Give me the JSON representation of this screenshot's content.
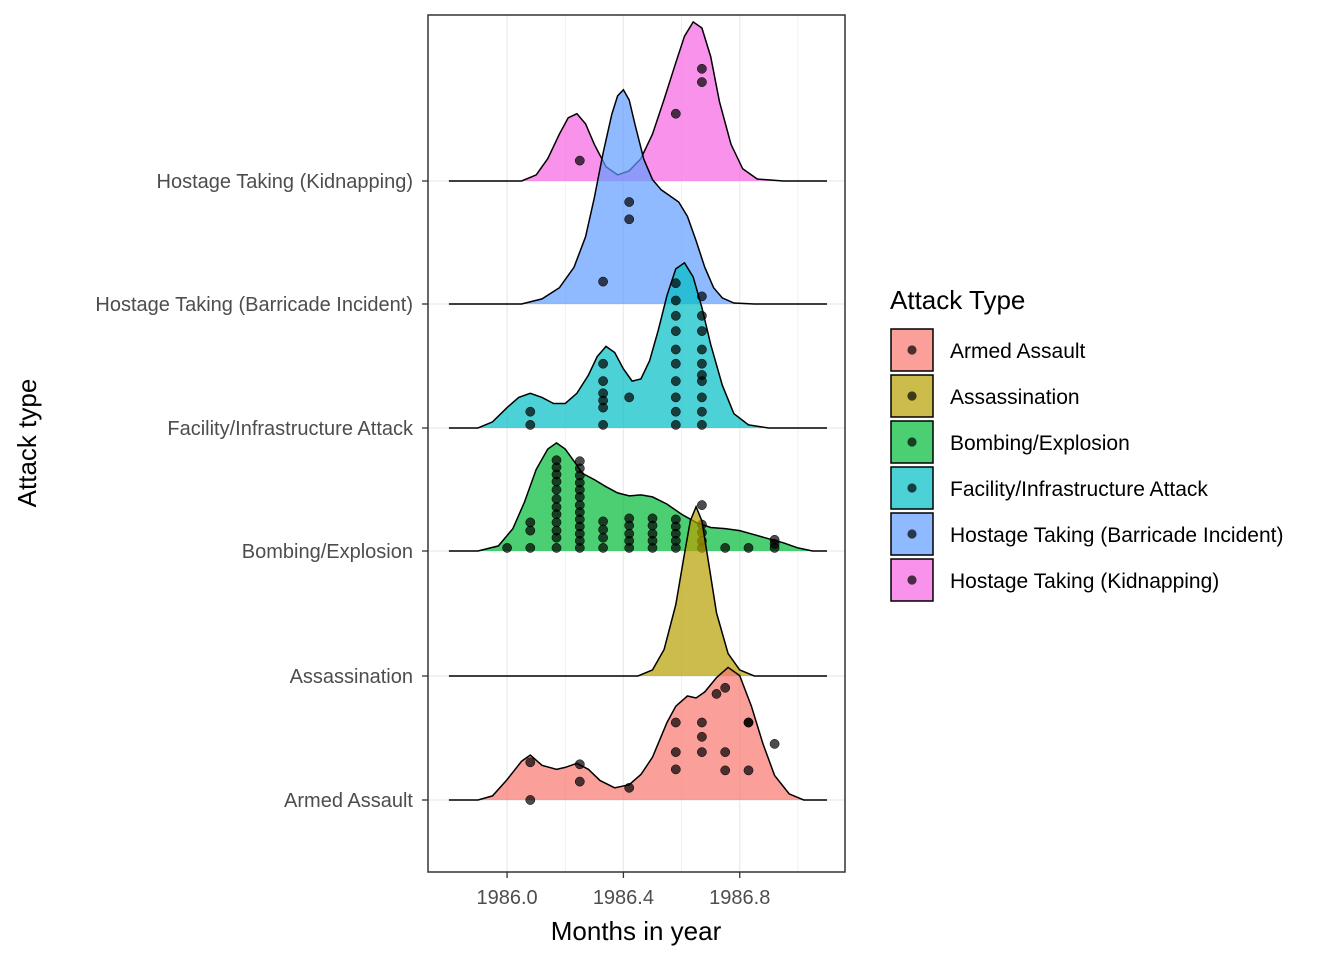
{
  "chart_data": {
    "type": "ridgeline",
    "xlabel": "Months in year",
    "ylabel": "Attack type",
    "xlim": [
      1985.79,
      1987.1
    ],
    "x_ticks": [
      1986.0,
      1986.2,
      1986.4,
      1986.6,
      1986.8,
      1987.0
    ],
    "x_tick_labels": [
      "1986.0",
      "",
      "1986.4",
      "",
      "1986.8",
      ""
    ],
    "grid": true,
    "legend_title": "Attack Type",
    "legend_position": "right",
    "categories": [
      "Armed Assault",
      "Assassination",
      "Bombing/Explosion",
      "Facility/Infrastructure Attack",
      "Hostage Taking (Barricade Incident)",
      "Hostage Taking (Kidnapping)"
    ],
    "colors": {
      "Armed Assault": "#F8766D",
      "Assassination": "#B79F00",
      "Bombing/Explosion": "#00BA38",
      "Facility/Infrastructure Attack": "#00BFC4",
      "Hostage Taking (Barricade Incident)": "#619CFF",
      "Hostage Taking (Kidnapping)": "#F564E3"
    },
    "series": [
      {
        "name": "Armed Assault",
        "density_x": [
          1985.8,
          1985.9,
          1985.95,
          1986.0,
          1986.05,
          1986.08,
          1986.12,
          1986.17,
          1986.2,
          1986.24,
          1986.28,
          1986.32,
          1986.37,
          1986.42,
          1986.46,
          1986.5,
          1986.55,
          1986.58,
          1986.62,
          1986.65,
          1986.68,
          1986.72,
          1986.76,
          1986.8,
          1986.84,
          1986.88,
          1986.92,
          1986.97,
          1987.02,
          1987.1
        ],
        "density_y": [
          0.0,
          0.0,
          0.04,
          0.2,
          0.38,
          0.44,
          0.34,
          0.3,
          0.32,
          0.36,
          0.3,
          0.19,
          0.12,
          0.15,
          0.25,
          0.42,
          0.76,
          0.92,
          1.02,
          1.0,
          1.06,
          1.2,
          1.3,
          1.22,
          0.92,
          0.55,
          0.24,
          0.06,
          0.0,
          0.0
        ],
        "points": [
          [
            1986.08,
            0.0
          ],
          [
            1986.08,
            0.37
          ],
          [
            1986.25,
            0.18
          ],
          [
            1986.25,
            0.35
          ],
          [
            1986.42,
            0.12
          ],
          [
            1986.58,
            0.3
          ],
          [
            1986.58,
            0.47
          ],
          [
            1986.58,
            0.76
          ],
          [
            1986.67,
            0.47
          ],
          [
            1986.67,
            0.62
          ],
          [
            1986.67,
            0.76
          ],
          [
            1986.72,
            1.04
          ],
          [
            1986.75,
            0.29
          ],
          [
            1986.75,
            0.47
          ],
          [
            1986.75,
            1.1
          ],
          [
            1986.83,
            0.29
          ],
          [
            1986.83,
            0.76
          ],
          [
            1986.83,
            0.76
          ],
          [
            1986.92,
            0.55
          ]
        ]
      },
      {
        "name": "Assassination",
        "density_x": [
          1985.8,
          1986.45,
          1986.5,
          1986.54,
          1986.58,
          1986.61,
          1986.63,
          1986.65,
          1986.67,
          1986.69,
          1986.72,
          1986.76,
          1986.8,
          1986.85,
          1987.1
        ],
        "density_y": [
          0.0,
          0.0,
          0.06,
          0.26,
          0.7,
          1.2,
          1.52,
          1.66,
          1.52,
          1.16,
          0.62,
          0.22,
          0.06,
          0.0,
          0.0
        ],
        "points": []
      },
      {
        "name": "Bombing/Explosion",
        "density_x": [
          1985.8,
          1985.9,
          1985.97,
          1986.02,
          1986.06,
          1986.1,
          1986.14,
          1986.17,
          1986.2,
          1986.23,
          1986.26,
          1986.3,
          1986.34,
          1986.38,
          1986.42,
          1986.46,
          1986.5,
          1986.55,
          1986.6,
          1986.65,
          1986.7,
          1986.75,
          1986.8,
          1986.85,
          1986.9,
          1986.95,
          1987.0,
          1987.05,
          1987.1
        ],
        "density_y": [
          0.0,
          0.0,
          0.05,
          0.22,
          0.48,
          0.8,
          1.0,
          1.06,
          1.0,
          0.88,
          0.76,
          0.7,
          0.63,
          0.57,
          0.54,
          0.55,
          0.53,
          0.46,
          0.36,
          0.28,
          0.23,
          0.22,
          0.2,
          0.16,
          0.12,
          0.08,
          0.03,
          0.0,
          0.0
        ],
        "points": [
          [
            1986.0,
            0.03
          ],
          [
            1986.08,
            0.03
          ],
          [
            1986.08,
            0.2
          ],
          [
            1986.08,
            0.28
          ],
          [
            1986.17,
            0.03
          ],
          [
            1986.17,
            0.13
          ],
          [
            1986.17,
            0.2
          ],
          [
            1986.17,
            0.28
          ],
          [
            1986.17,
            0.36
          ],
          [
            1986.17,
            0.43
          ],
          [
            1986.17,
            0.51
          ],
          [
            1986.17,
            0.6
          ],
          [
            1986.17,
            0.68
          ],
          [
            1986.17,
            0.75
          ],
          [
            1986.17,
            0.82
          ],
          [
            1986.17,
            0.89
          ],
          [
            1986.25,
            0.03
          ],
          [
            1986.25,
            0.1
          ],
          [
            1986.25,
            0.17
          ],
          [
            1986.25,
            0.24
          ],
          [
            1986.25,
            0.31
          ],
          [
            1986.25,
            0.38
          ],
          [
            1986.25,
            0.45
          ],
          [
            1986.25,
            0.53
          ],
          [
            1986.25,
            0.6
          ],
          [
            1986.25,
            0.67
          ],
          [
            1986.25,
            0.74
          ],
          [
            1986.25,
            0.81
          ],
          [
            1986.25,
            0.88
          ],
          [
            1986.33,
            0.03
          ],
          [
            1986.33,
            0.13
          ],
          [
            1986.33,
            0.21
          ],
          [
            1986.33,
            0.29
          ],
          [
            1986.42,
            0.03
          ],
          [
            1986.42,
            0.1
          ],
          [
            1986.42,
            0.17
          ],
          [
            1986.42,
            0.25
          ],
          [
            1986.42,
            0.32
          ],
          [
            1986.5,
            0.03
          ],
          [
            1986.5,
            0.1
          ],
          [
            1986.5,
            0.17
          ],
          [
            1986.5,
            0.25
          ],
          [
            1986.5,
            0.32
          ],
          [
            1986.58,
            0.03
          ],
          [
            1986.58,
            0.1
          ],
          [
            1986.58,
            0.17
          ],
          [
            1986.58,
            0.24
          ],
          [
            1986.58,
            0.31
          ],
          [
            1986.67,
            0.03
          ],
          [
            1986.67,
            0.1
          ],
          [
            1986.67,
            0.18
          ],
          [
            1986.67,
            0.26
          ],
          [
            1986.67,
            0.45
          ],
          [
            1986.75,
            0.03
          ],
          [
            1986.83,
            0.03
          ],
          [
            1986.92,
            0.03
          ],
          [
            1986.92,
            0.07
          ],
          [
            1986.92,
            0.11
          ]
        ]
      },
      {
        "name": "Facility/Infrastructure Attack",
        "density_x": [
          1985.8,
          1985.9,
          1985.95,
          1986.0,
          1986.04,
          1986.08,
          1986.12,
          1986.16,
          1986.2,
          1986.24,
          1986.28,
          1986.31,
          1986.34,
          1986.37,
          1986.4,
          1986.43,
          1986.46,
          1986.49,
          1986.52,
          1986.55,
          1986.58,
          1986.61,
          1986.64,
          1986.67,
          1986.7,
          1986.74,
          1986.78,
          1986.83,
          1986.9,
          1987.1
        ],
        "density_y": [
          0.0,
          0.0,
          0.06,
          0.2,
          0.3,
          0.34,
          0.3,
          0.24,
          0.24,
          0.34,
          0.52,
          0.7,
          0.8,
          0.74,
          0.58,
          0.46,
          0.48,
          0.66,
          0.96,
          1.3,
          1.56,
          1.62,
          1.48,
          1.18,
          0.82,
          0.42,
          0.14,
          0.03,
          0.0,
          0.0
        ],
        "points": [
          [
            1986.08,
            0.03
          ],
          [
            1986.08,
            0.16
          ],
          [
            1986.33,
            0.03
          ],
          [
            1986.33,
            0.2
          ],
          [
            1986.33,
            0.27
          ],
          [
            1986.33,
            0.34
          ],
          [
            1986.33,
            0.46
          ],
          [
            1986.33,
            0.63
          ],
          [
            1986.42,
            0.3
          ],
          [
            1986.58,
            0.03
          ],
          [
            1986.58,
            0.16
          ],
          [
            1986.58,
            0.3
          ],
          [
            1986.58,
            0.46
          ],
          [
            1986.58,
            0.63
          ],
          [
            1986.58,
            0.77
          ],
          [
            1986.58,
            0.95
          ],
          [
            1986.58,
            1.1
          ],
          [
            1986.58,
            1.25
          ],
          [
            1986.58,
            1.42
          ],
          [
            1986.67,
            0.03
          ],
          [
            1986.67,
            0.16
          ],
          [
            1986.67,
            0.3
          ],
          [
            1986.67,
            0.46
          ],
          [
            1986.67,
            0.63
          ],
          [
            1986.67,
            0.77
          ],
          [
            1986.67,
            0.95
          ],
          [
            1986.67,
            1.1
          ],
          [
            1986.67,
            1.29
          ],
          [
            1986.67,
            0.52
          ]
        ]
      },
      {
        "name": "Hostage Taking (Barricade Incident)",
        "density_x": [
          1985.8,
          1986.05,
          1986.12,
          1986.18,
          1986.23,
          1986.27,
          1986.3,
          1986.33,
          1986.36,
          1986.38,
          1986.4,
          1986.42,
          1986.44,
          1986.47,
          1986.5,
          1986.53,
          1986.56,
          1986.59,
          1986.62,
          1986.65,
          1986.68,
          1986.71,
          1986.74,
          1986.78,
          1986.85,
          1987.1
        ],
        "density_y": [
          0.0,
          0.0,
          0.05,
          0.16,
          0.36,
          0.66,
          1.04,
          1.48,
          1.86,
          2.04,
          2.1,
          2.0,
          1.76,
          1.42,
          1.22,
          1.12,
          1.06,
          1.0,
          0.86,
          0.62,
          0.36,
          0.16,
          0.06,
          0.01,
          0.0,
          0.0
        ],
        "points": [
          [
            1986.33,
            0.22
          ],
          [
            1986.42,
            0.83
          ],
          [
            1986.42,
            1.0
          ]
        ]
      },
      {
        "name": "Hostage Taking (Kidnapping)",
        "density_x": [
          1985.8,
          1986.05,
          1986.1,
          1986.14,
          1986.18,
          1986.21,
          1986.24,
          1986.27,
          1986.3,
          1986.34,
          1986.38,
          1986.42,
          1986.46,
          1986.5,
          1986.54,
          1986.58,
          1986.61,
          1986.64,
          1986.67,
          1986.7,
          1986.73,
          1986.77,
          1986.81,
          1986.86,
          1986.95,
          1987.1
        ],
        "density_y": [
          0.0,
          0.0,
          0.06,
          0.22,
          0.46,
          0.62,
          0.66,
          0.56,
          0.36,
          0.14,
          0.06,
          0.1,
          0.22,
          0.46,
          0.8,
          1.16,
          1.42,
          1.56,
          1.5,
          1.22,
          0.78,
          0.36,
          0.12,
          0.02,
          0.0,
          0.0
        ],
        "points": [
          [
            1986.25,
            0.2
          ],
          [
            1986.58,
            0.66
          ],
          [
            1986.67,
            0.97
          ],
          [
            1986.67,
            1.1
          ]
        ]
      }
    ]
  }
}
